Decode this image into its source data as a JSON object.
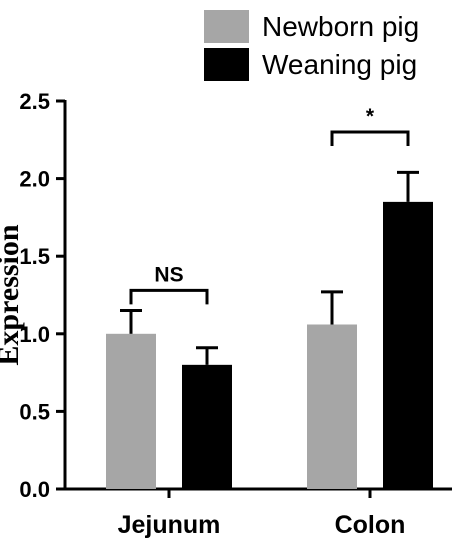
{
  "chart_data": {
    "type": "bar",
    "title": "",
    "xlabel": "",
    "ylabel": "Expression",
    "ylim": [
      0,
      2.5
    ],
    "yticks": [
      "0.0",
      "0.5",
      "1.0",
      "1.5",
      "2.0",
      "2.5"
    ],
    "categories": [
      "Jejunum",
      "Colon"
    ],
    "legend_position": "top-right",
    "series": [
      {
        "name": "Newborn pig",
        "color": "#a6a6a6",
        "values": [
          1.0,
          1.06
        ],
        "errors": [
          0.15,
          0.21
        ]
      },
      {
        "name": "Weaning pig",
        "color": "#000000",
        "values": [
          0.8,
          1.85
        ],
        "errors": [
          0.11,
          0.19
        ]
      }
    ],
    "significance": [
      {
        "category_index": 0,
        "label": "NS",
        "bracket_y": 1.28
      },
      {
        "category_index": 1,
        "label": "*",
        "bracket_y": 2.3
      }
    ],
    "grid": false
  }
}
